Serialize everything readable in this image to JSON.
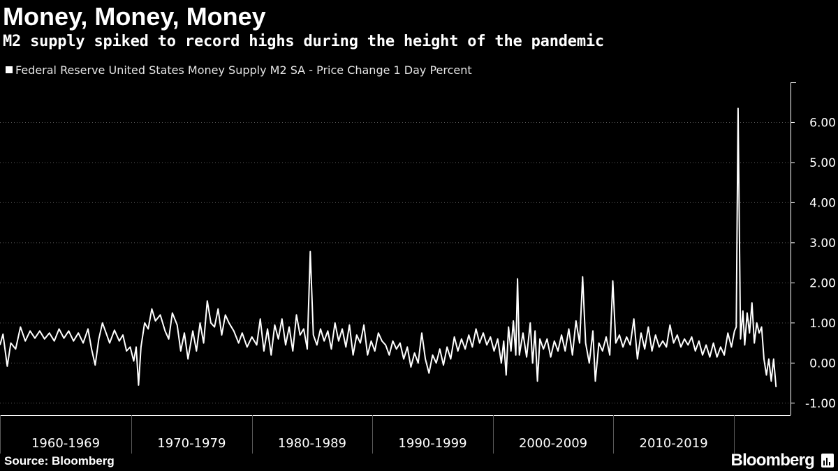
{
  "header": {
    "title": "Money, Money, Money",
    "subtitle": "M2 supply spiked to record highs during the height of the pandemic"
  },
  "legend": {
    "label": "Federal Reserve United States Money Supply M2 SA - Price Change 1 Day Percent",
    "color": "#ffffff"
  },
  "footer": {
    "source": "Source: Bloomberg",
    "brand": "Bloomberg"
  },
  "chart_data": {
    "type": "line",
    "series": [
      {
        "name": "Federal Reserve United States Money Supply M2 SA - Price Change 1 Day Percent",
        "color": "#ffffff",
        "points": [
          [
            1959.0,
            0.45
          ],
          [
            1959.25,
            0.72
          ],
          [
            1959.6,
            -0.08
          ],
          [
            1959.9,
            0.5
          ],
          [
            1960.3,
            0.35
          ],
          [
            1960.7,
            0.9
          ],
          [
            1961.1,
            0.55
          ],
          [
            1961.5,
            0.8
          ],
          [
            1961.9,
            0.62
          ],
          [
            1962.3,
            0.8
          ],
          [
            1962.7,
            0.6
          ],
          [
            1963.1,
            0.75
          ],
          [
            1963.5,
            0.55
          ],
          [
            1963.9,
            0.85
          ],
          [
            1964.3,
            0.62
          ],
          [
            1964.7,
            0.8
          ],
          [
            1965.1,
            0.55
          ],
          [
            1965.5,
            0.75
          ],
          [
            1965.9,
            0.5
          ],
          [
            1966.3,
            0.85
          ],
          [
            1966.6,
            0.35
          ],
          [
            1966.9,
            -0.05
          ],
          [
            1967.2,
            0.6
          ],
          [
            1967.5,
            1.0
          ],
          [
            1967.8,
            0.75
          ],
          [
            1968.1,
            0.5
          ],
          [
            1968.5,
            0.82
          ],
          [
            1968.9,
            0.55
          ],
          [
            1969.2,
            0.7
          ],
          [
            1969.5,
            0.3
          ],
          [
            1969.8,
            0.4
          ],
          [
            1970.1,
            0.05
          ],
          [
            1970.3,
            0.4
          ],
          [
            1970.5,
            -0.55
          ],
          [
            1970.7,
            0.4
          ],
          [
            1971.0,
            1.0
          ],
          [
            1971.3,
            0.85
          ],
          [
            1971.6,
            1.35
          ],
          [
            1971.9,
            1.05
          ],
          [
            1972.3,
            1.2
          ],
          [
            1972.7,
            0.8
          ],
          [
            1973.0,
            0.6
          ],
          [
            1973.3,
            1.25
          ],
          [
            1973.7,
            0.95
          ],
          [
            1974.0,
            0.3
          ],
          [
            1974.3,
            0.75
          ],
          [
            1974.6,
            0.1
          ],
          [
            1975.0,
            0.8
          ],
          [
            1975.3,
            0.3
          ],
          [
            1975.6,
            1.0
          ],
          [
            1975.9,
            0.5
          ],
          [
            1976.2,
            1.55
          ],
          [
            1976.5,
            1.0
          ],
          [
            1976.8,
            0.9
          ],
          [
            1977.1,
            1.35
          ],
          [
            1977.4,
            0.7
          ],
          [
            1977.7,
            1.2
          ],
          [
            1978.0,
            1.0
          ],
          [
            1978.4,
            0.8
          ],
          [
            1978.8,
            0.5
          ],
          [
            1979.1,
            0.75
          ],
          [
            1979.5,
            0.4
          ],
          [
            1979.9,
            0.65
          ],
          [
            1980.3,
            0.45
          ],
          [
            1980.6,
            1.1
          ],
          [
            1980.9,
            0.3
          ],
          [
            1981.2,
            0.85
          ],
          [
            1981.5,
            0.2
          ],
          [
            1981.8,
            0.95
          ],
          [
            1982.1,
            0.6
          ],
          [
            1982.4,
            1.1
          ],
          [
            1982.7,
            0.45
          ],
          [
            1983.0,
            0.9
          ],
          [
            1983.3,
            0.3
          ],
          [
            1983.6,
            1.2
          ],
          [
            1983.9,
            0.7
          ],
          [
            1984.2,
            0.85
          ],
          [
            1984.5,
            0.35
          ],
          [
            1984.75,
            2.78
          ],
          [
            1985.0,
            0.7
          ],
          [
            1985.3,
            0.45
          ],
          [
            1985.6,
            0.85
          ],
          [
            1985.9,
            0.55
          ],
          [
            1986.2,
            0.8
          ],
          [
            1986.5,
            0.35
          ],
          [
            1986.8,
            1.0
          ],
          [
            1987.1,
            0.55
          ],
          [
            1987.4,
            0.85
          ],
          [
            1987.7,
            0.4
          ],
          [
            1988.0,
            0.95
          ],
          [
            1988.3,
            0.2
          ],
          [
            1988.6,
            0.7
          ],
          [
            1988.9,
            0.5
          ],
          [
            1989.2,
            0.95
          ],
          [
            1989.5,
            0.2
          ],
          [
            1989.8,
            0.55
          ],
          [
            1990.1,
            0.3
          ],
          [
            1990.4,
            0.75
          ],
          [
            1990.7,
            0.55
          ],
          [
            1991.0,
            0.45
          ],
          [
            1991.3,
            0.2
          ],
          [
            1991.6,
            0.55
          ],
          [
            1991.9,
            0.35
          ],
          [
            1992.2,
            0.5
          ],
          [
            1992.5,
            0.1
          ],
          [
            1992.8,
            0.4
          ],
          [
            1993.1,
            -0.1
          ],
          [
            1993.4,
            0.25
          ],
          [
            1993.7,
            0.0
          ],
          [
            1994.0,
            0.75
          ],
          [
            1994.3,
            0.1
          ],
          [
            1994.6,
            -0.25
          ],
          [
            1994.9,
            0.2
          ],
          [
            1995.2,
            0.0
          ],
          [
            1995.5,
            0.35
          ],
          [
            1995.8,
            -0.05
          ],
          [
            1996.1,
            0.4
          ],
          [
            1996.4,
            0.1
          ],
          [
            1996.7,
            0.65
          ],
          [
            1997.0,
            0.3
          ],
          [
            1997.3,
            0.6
          ],
          [
            1997.6,
            0.35
          ],
          [
            1997.9,
            0.7
          ],
          [
            1998.2,
            0.4
          ],
          [
            1998.5,
            0.85
          ],
          [
            1998.8,
            0.5
          ],
          [
            1999.1,
            0.75
          ],
          [
            1999.4,
            0.45
          ],
          [
            1999.7,
            0.65
          ],
          [
            2000.0,
            0.3
          ],
          [
            2000.3,
            0.6
          ],
          [
            2000.6,
            0.0
          ],
          [
            2000.8,
            0.55
          ],
          [
            2001.0,
            -0.3
          ],
          [
            2001.2,
            0.9
          ],
          [
            2001.4,
            0.3
          ],
          [
            2001.6,
            1.05
          ],
          [
            2001.8,
            0.2
          ],
          [
            2001.95,
            2.1
          ],
          [
            2002.1,
            0.2
          ],
          [
            2002.4,
            0.75
          ],
          [
            2002.7,
            0.15
          ],
          [
            2003.0,
            1.0
          ],
          [
            2003.2,
            0.0
          ],
          [
            2003.4,
            0.8
          ],
          [
            2003.6,
            -0.45
          ],
          [
            2003.8,
            0.6
          ],
          [
            2004.1,
            0.35
          ],
          [
            2004.4,
            0.6
          ],
          [
            2004.7,
            0.15
          ],
          [
            2005.0,
            0.55
          ],
          [
            2005.3,
            0.3
          ],
          [
            2005.6,
            0.7
          ],
          [
            2005.9,
            0.3
          ],
          [
            2006.2,
            0.85
          ],
          [
            2006.5,
            0.2
          ],
          [
            2006.8,
            1.05
          ],
          [
            2007.1,
            0.5
          ],
          [
            2007.35,
            2.15
          ],
          [
            2007.6,
            0.5
          ],
          [
            2007.9,
            0.0
          ],
          [
            2008.2,
            0.8
          ],
          [
            2008.4,
            -0.45
          ],
          [
            2008.7,
            0.5
          ],
          [
            2009.0,
            0.3
          ],
          [
            2009.3,
            0.65
          ],
          [
            2009.6,
            0.2
          ],
          [
            2009.85,
            2.05
          ],
          [
            2010.1,
            0.5
          ],
          [
            2010.4,
            0.7
          ],
          [
            2010.7,
            0.4
          ],
          [
            2011.0,
            0.65
          ],
          [
            2011.3,
            0.45
          ],
          [
            2011.6,
            1.1
          ],
          [
            2011.9,
            0.1
          ],
          [
            2012.2,
            0.75
          ],
          [
            2012.5,
            0.35
          ],
          [
            2012.8,
            0.9
          ],
          [
            2013.1,
            0.3
          ],
          [
            2013.4,
            0.7
          ],
          [
            2013.7,
            0.4
          ],
          [
            2014.0,
            0.55
          ],
          [
            2014.3,
            0.4
          ],
          [
            2014.6,
            0.95
          ],
          [
            2014.9,
            0.5
          ],
          [
            2015.2,
            0.7
          ],
          [
            2015.5,
            0.4
          ],
          [
            2015.8,
            0.6
          ],
          [
            2016.1,
            0.45
          ],
          [
            2016.4,
            0.65
          ],
          [
            2016.7,
            0.3
          ],
          [
            2017.0,
            0.55
          ],
          [
            2017.3,
            0.2
          ],
          [
            2017.6,
            0.45
          ],
          [
            2017.9,
            0.15
          ],
          [
            2018.2,
            0.5
          ],
          [
            2018.5,
            0.15
          ],
          [
            2018.8,
            0.4
          ],
          [
            2019.1,
            0.2
          ],
          [
            2019.4,
            0.75
          ],
          [
            2019.7,
            0.4
          ],
          [
            2019.95,
            0.8
          ],
          [
            2020.1,
            0.9
          ],
          [
            2020.25,
            6.35
          ],
          [
            2020.45,
            0.6
          ],
          [
            2020.65,
            1.3
          ],
          [
            2020.8,
            0.45
          ],
          [
            2021.0,
            1.25
          ],
          [
            2021.2,
            0.75
          ],
          [
            2021.4,
            1.5
          ],
          [
            2021.6,
            0.5
          ],
          [
            2021.8,
            1.0
          ],
          [
            2022.0,
            0.75
          ],
          [
            2022.2,
            0.9
          ],
          [
            2022.4,
            0.1
          ],
          [
            2022.6,
            -0.3
          ],
          [
            2022.8,
            0.1
          ],
          [
            2023.0,
            -0.45
          ],
          [
            2023.2,
            0.1
          ],
          [
            2023.4,
            -0.6
          ]
        ]
      }
    ],
    "xlim": [
      1959,
      2024.6
    ],
    "ylim": [
      -1.3,
      7.0
    ],
    "y_ticks": [
      {
        "value": 6,
        "label": "6.00"
      },
      {
        "value": 5,
        "label": "5.00"
      },
      {
        "value": 4,
        "label": "4.00"
      },
      {
        "value": 3,
        "label": "3.00"
      },
      {
        "value": 2,
        "label": "2.00"
      },
      {
        "value": 1,
        "label": "1.00"
      },
      {
        "value": 0,
        "label": "0.00"
      },
      {
        "value": -1,
        "label": "-1.00"
      }
    ],
    "x_dividers": [
      1959,
      1969.9,
      1979.9,
      1989.9,
      1999.9,
      2009.9,
      2019.9
    ],
    "x_categories": [
      {
        "label": "1960-1969",
        "from": 1959,
        "to": 1969.9
      },
      {
        "label": "1970-1979",
        "from": 1969.9,
        "to": 1979.9
      },
      {
        "label": "1980-1989",
        "from": 1979.9,
        "to": 1989.9
      },
      {
        "label": "1990-1999",
        "from": 1989.9,
        "to": 1999.9
      },
      {
        "label": "2000-2009",
        "from": 1999.9,
        "to": 2009.9
      },
      {
        "label": "2010-2019",
        "from": 2009.9,
        "to": 2019.9
      }
    ],
    "title": "Money, Money, Money",
    "subtitle": "M2 supply spiked to record highs during the height of the pandemic",
    "legend_position": "top-left",
    "grid": "horizontal dotted"
  }
}
